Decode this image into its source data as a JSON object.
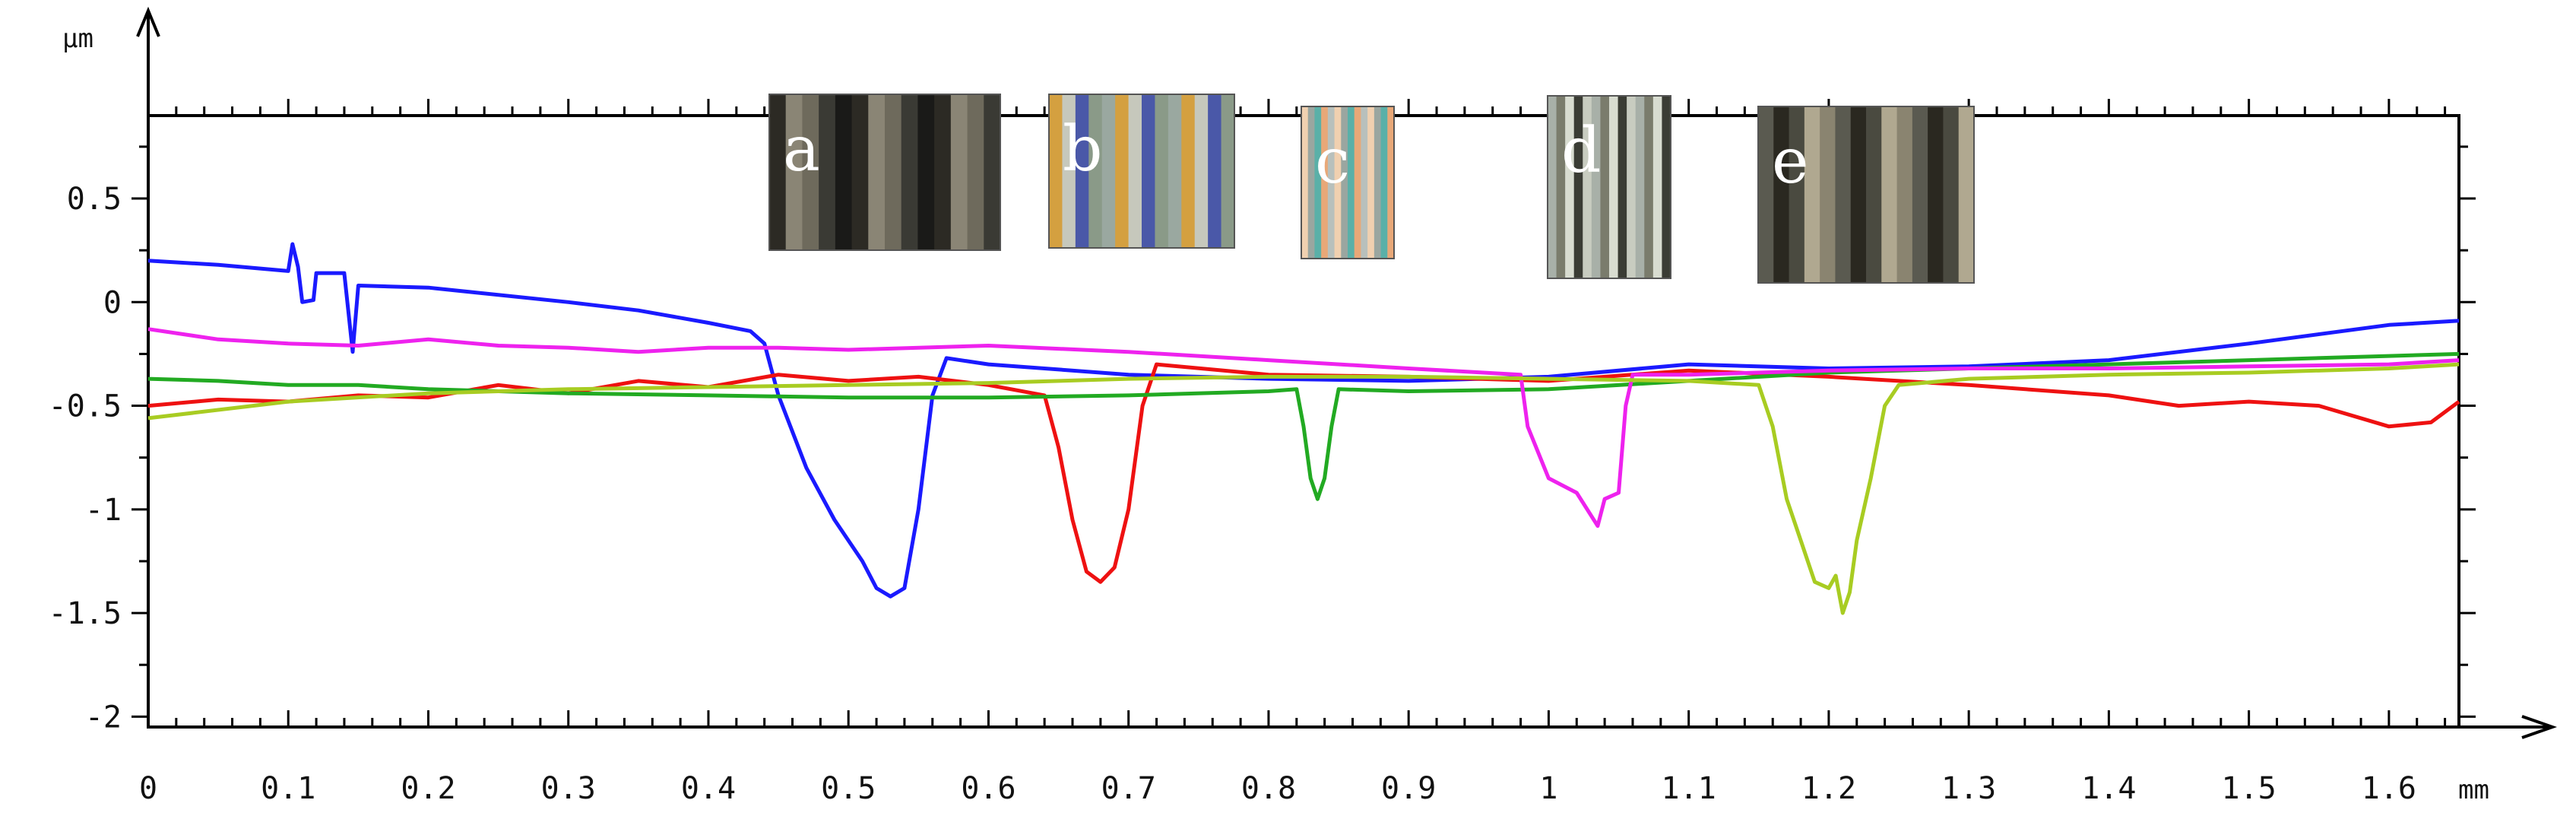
{
  "chart_data": {
    "type": "line",
    "title": "",
    "xlabel": "mm",
    "ylabel": "µm",
    "xlim": [
      0,
      1.65
    ],
    "ylim": [
      -2.05,
      0.9
    ],
    "x_ticks": [
      {
        "value": 0,
        "label": "0"
      },
      {
        "value": 0.1,
        "label": "0.1"
      },
      {
        "value": 0.2,
        "label": "0.2"
      },
      {
        "value": 0.3,
        "label": "0.3"
      },
      {
        "value": 0.4,
        "label": "0.4"
      },
      {
        "value": 0.5,
        "label": "0.5"
      },
      {
        "value": 0.6,
        "label": "0.6"
      },
      {
        "value": 0.7,
        "label": "0.7"
      },
      {
        "value": 0.8,
        "label": "0.8"
      },
      {
        "value": 0.9,
        "label": "0.9"
      },
      {
        "value": 1.0,
        "label": "1"
      },
      {
        "value": 1.1,
        "label": "1.1"
      },
      {
        "value": 1.2,
        "label": "1.2"
      },
      {
        "value": 1.3,
        "label": "1.3"
      },
      {
        "value": 1.4,
        "label": "1.4"
      },
      {
        "value": 1.5,
        "label": "1.5"
      },
      {
        "value": 1.6,
        "label": "1.6"
      }
    ],
    "y_ticks": [
      {
        "value": 0.5,
        "label": "0.5"
      },
      {
        "value": 0,
        "label": "0"
      },
      {
        "value": -0.5,
        "label": "-0.5"
      },
      {
        "value": -1,
        "label": "-1"
      },
      {
        "value": -1.5,
        "label": "-1.5"
      },
      {
        "value": -2,
        "label": "-2"
      }
    ],
    "grid": false,
    "series": [
      {
        "color": "#1a1aff",
        "points": [
          [
            0,
            0.2
          ],
          [
            0.05,
            0.18
          ],
          [
            0.1,
            0.15
          ],
          [
            0.103,
            0.28
          ],
          [
            0.107,
            0.17
          ],
          [
            0.11,
            0.0
          ],
          [
            0.118,
            0.01
          ],
          [
            0.12,
            0.14
          ],
          [
            0.14,
            0.14
          ],
          [
            0.146,
            -0.24
          ],
          [
            0.15,
            0.08
          ],
          [
            0.2,
            0.07
          ],
          [
            0.3,
            0.0
          ],
          [
            0.35,
            -0.04
          ],
          [
            0.4,
            -0.1
          ],
          [
            0.43,
            -0.14
          ],
          [
            0.44,
            -0.2
          ],
          [
            0.45,
            -0.45
          ],
          [
            0.47,
            -0.8
          ],
          [
            0.49,
            -1.05
          ],
          [
            0.51,
            -1.25
          ],
          [
            0.52,
            -1.38
          ],
          [
            0.53,
            -1.42
          ],
          [
            0.54,
            -1.38
          ],
          [
            0.55,
            -1.0
          ],
          [
            0.56,
            -0.45
          ],
          [
            0.57,
            -0.27
          ],
          [
            0.6,
            -0.3
          ],
          [
            0.7,
            -0.35
          ],
          [
            0.8,
            -0.37
          ],
          [
            0.9,
            -0.38
          ],
          [
            1.0,
            -0.36
          ],
          [
            1.1,
            -0.3
          ],
          [
            1.2,
            -0.32
          ],
          [
            1.3,
            -0.31
          ],
          [
            1.4,
            -0.28
          ],
          [
            1.5,
            -0.2
          ],
          [
            1.6,
            -0.11
          ],
          [
            1.65,
            -0.09
          ]
        ]
      },
      {
        "color": "#ee1111",
        "points": [
          [
            0,
            -0.5
          ],
          [
            0.05,
            -0.47
          ],
          [
            0.1,
            -0.48
          ],
          [
            0.15,
            -0.45
          ],
          [
            0.2,
            -0.46
          ],
          [
            0.25,
            -0.4
          ],
          [
            0.3,
            -0.44
          ],
          [
            0.35,
            -0.38
          ],
          [
            0.4,
            -0.41
          ],
          [
            0.45,
            -0.35
          ],
          [
            0.5,
            -0.38
          ],
          [
            0.55,
            -0.36
          ],
          [
            0.6,
            -0.4
          ],
          [
            0.64,
            -0.45
          ],
          [
            0.65,
            -0.7
          ],
          [
            0.66,
            -1.05
          ],
          [
            0.67,
            -1.3
          ],
          [
            0.68,
            -1.35
          ],
          [
            0.69,
            -1.28
          ],
          [
            0.7,
            -1.0
          ],
          [
            0.71,
            -0.5
          ],
          [
            0.72,
            -0.3
          ],
          [
            0.8,
            -0.35
          ],
          [
            0.9,
            -0.36
          ],
          [
            1.0,
            -0.38
          ],
          [
            1.1,
            -0.33
          ],
          [
            1.2,
            -0.36
          ],
          [
            1.3,
            -0.4
          ],
          [
            1.4,
            -0.45
          ],
          [
            1.45,
            -0.5
          ],
          [
            1.5,
            -0.48
          ],
          [
            1.55,
            -0.5
          ],
          [
            1.6,
            -0.6
          ],
          [
            1.63,
            -0.58
          ],
          [
            1.65,
            -0.48
          ]
        ]
      },
      {
        "color": "#22aa22",
        "points": [
          [
            0,
            -0.37
          ],
          [
            0.05,
            -0.38
          ],
          [
            0.1,
            -0.4
          ],
          [
            0.15,
            -0.4
          ],
          [
            0.2,
            -0.42
          ],
          [
            0.3,
            -0.44
          ],
          [
            0.4,
            -0.45
          ],
          [
            0.5,
            -0.46
          ],
          [
            0.6,
            -0.46
          ],
          [
            0.7,
            -0.45
          ],
          [
            0.8,
            -0.43
          ],
          [
            0.82,
            -0.42
          ],
          [
            0.825,
            -0.6
          ],
          [
            0.83,
            -0.85
          ],
          [
            0.835,
            -0.95
          ],
          [
            0.84,
            -0.85
          ],
          [
            0.845,
            -0.6
          ],
          [
            0.85,
            -0.42
          ],
          [
            0.9,
            -0.43
          ],
          [
            1.0,
            -0.42
          ],
          [
            1.1,
            -0.38
          ],
          [
            1.2,
            -0.34
          ],
          [
            1.3,
            -0.32
          ],
          [
            1.4,
            -0.3
          ],
          [
            1.5,
            -0.28
          ],
          [
            1.6,
            -0.26
          ],
          [
            1.65,
            -0.25
          ]
        ]
      },
      {
        "color": "#ee22ee",
        "points": [
          [
            0,
            -0.13
          ],
          [
            0.05,
            -0.18
          ],
          [
            0.1,
            -0.2
          ],
          [
            0.15,
            -0.21
          ],
          [
            0.2,
            -0.18
          ],
          [
            0.25,
            -0.21
          ],
          [
            0.3,
            -0.22
          ],
          [
            0.35,
            -0.24
          ],
          [
            0.4,
            -0.22
          ],
          [
            0.45,
            -0.22
          ],
          [
            0.5,
            -0.23
          ],
          [
            0.6,
            -0.21
          ],
          [
            0.7,
            -0.24
          ],
          [
            0.8,
            -0.28
          ],
          [
            0.9,
            -0.32
          ],
          [
            0.98,
            -0.35
          ],
          [
            0.985,
            -0.6
          ],
          [
            1.0,
            -0.85
          ],
          [
            1.02,
            -0.92
          ],
          [
            1.035,
            -1.08
          ],
          [
            1.04,
            -0.95
          ],
          [
            1.05,
            -0.92
          ],
          [
            1.055,
            -0.5
          ],
          [
            1.06,
            -0.35
          ],
          [
            1.1,
            -0.35
          ],
          [
            1.2,
            -0.33
          ],
          [
            1.3,
            -0.32
          ],
          [
            1.4,
            -0.32
          ],
          [
            1.5,
            -0.31
          ],
          [
            1.6,
            -0.3
          ],
          [
            1.65,
            -0.28
          ]
        ]
      },
      {
        "color": "#a8cc22",
        "points": [
          [
            0,
            -0.56
          ],
          [
            0.1,
            -0.48
          ],
          [
            0.2,
            -0.44
          ],
          [
            0.3,
            -0.42
          ],
          [
            0.4,
            -0.41
          ],
          [
            0.5,
            -0.4
          ],
          [
            0.6,
            -0.39
          ],
          [
            0.7,
            -0.37
          ],
          [
            0.8,
            -0.36
          ],
          [
            0.9,
            -0.36
          ],
          [
            1.0,
            -0.37
          ],
          [
            1.1,
            -0.38
          ],
          [
            1.15,
            -0.4
          ],
          [
            1.16,
            -0.6
          ],
          [
            1.17,
            -0.95
          ],
          [
            1.18,
            -1.15
          ],
          [
            1.19,
            -1.35
          ],
          [
            1.2,
            -1.38
          ],
          [
            1.205,
            -1.32
          ],
          [
            1.21,
            -1.5
          ],
          [
            1.215,
            -1.4
          ],
          [
            1.22,
            -1.15
          ],
          [
            1.23,
            -0.85
          ],
          [
            1.24,
            -0.5
          ],
          [
            1.25,
            -0.4
          ],
          [
            1.3,
            -0.37
          ],
          [
            1.4,
            -0.35
          ],
          [
            1.5,
            -0.34
          ],
          [
            1.6,
            -0.32
          ],
          [
            1.65,
            -0.3
          ]
        ]
      }
    ],
    "insets": [
      {
        "letter": "a",
        "colors": [
          "#2c2a24",
          "#6e6a5c",
          "#1a1a18",
          "#8a8575",
          "#3a3a34"
        ]
      },
      {
        "letter": "b",
        "colors": [
          "#8a9a88",
          "#d4a040",
          "#4a58a8",
          "#9aa8a0",
          "#c6c8bc"
        ]
      },
      {
        "letter": "c",
        "colors": [
          "#9aa6a0",
          "#e8a878",
          "#f0d0b0",
          "#5ab0a8",
          "#b8c0bc"
        ]
      },
      {
        "letter": "d",
        "colors": [
          "#c8ccc0",
          "#7a7c6c",
          "#3a3c34",
          "#a8b0a8",
          "#d8dcd0"
        ]
      },
      {
        "letter": "e",
        "colors": [
          "#4a4a40",
          "#8a8470",
          "#2a2820",
          "#b0a890",
          "#5a5a50"
        ]
      }
    ]
  }
}
